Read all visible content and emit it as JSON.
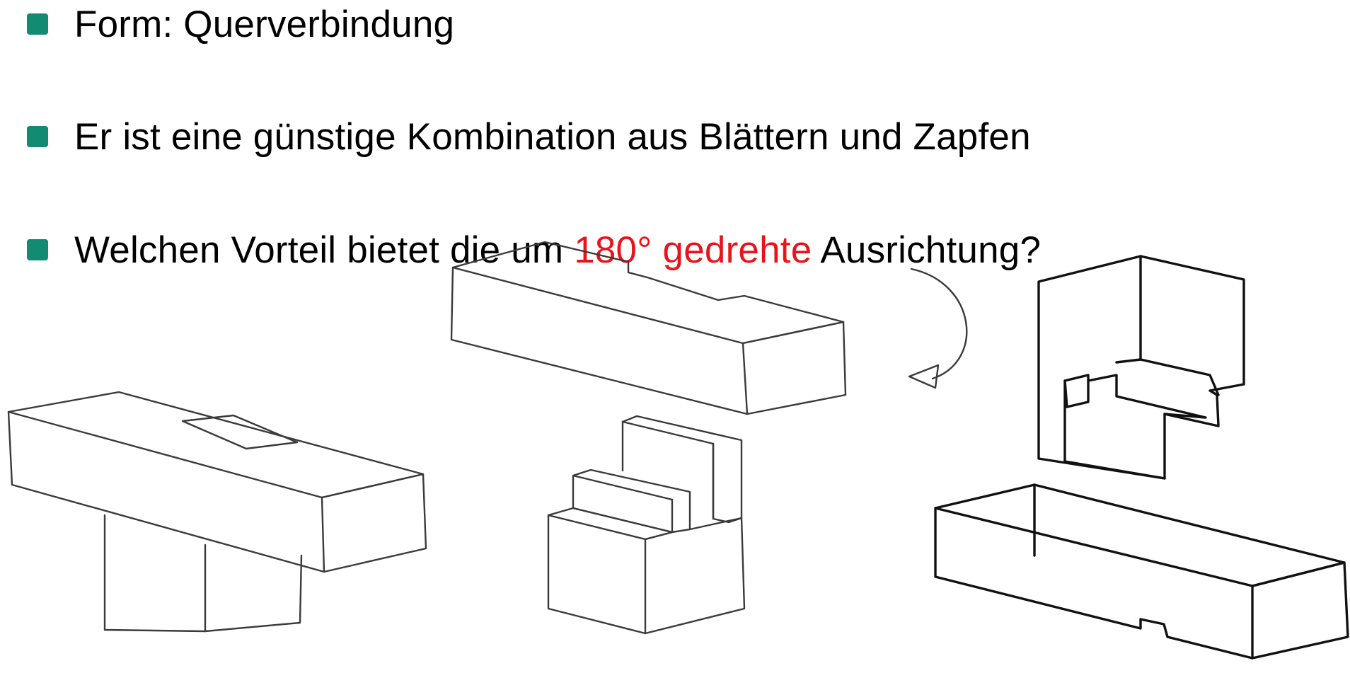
{
  "bullets": [
    {
      "text": "Form: Querverbindung"
    },
    {
      "text": "Er ist eine günstige Kombination aus Blättern und Zapfen"
    },
    {
      "text_before": "Welchen Vorteil bietet die um ",
      "highlight": "180° gedrehte",
      "text_after": " Ausrichtung?"
    }
  ],
  "colors": {
    "bullet_marker": "#138a72",
    "highlight": "#e8141b",
    "arrow": "#e8141b"
  },
  "icons": {
    "rotation_arrow": "rotate-clockwise-arrow-icon"
  }
}
